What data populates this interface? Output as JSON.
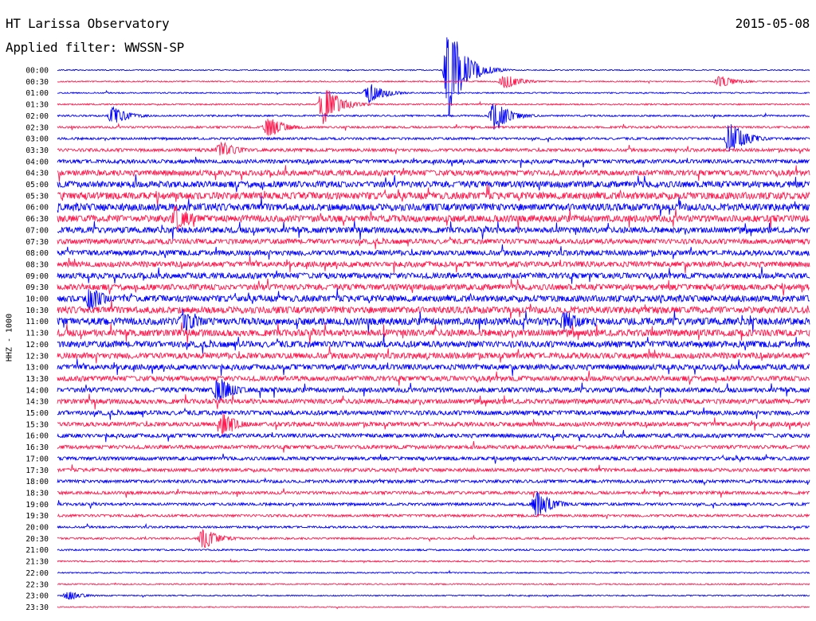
{
  "header": {
    "station": "HT Larissa Observatory",
    "date": "2015-05-08",
    "filter": "Applied filter: WWSSN-SP"
  },
  "colors": {
    "trace_a": "#0000ff",
    "trace_b": "#ff1a4f",
    "background": "#ffffff",
    "text": "#000000"
  },
  "chart_data": {
    "type": "line",
    "subtype": "helicorder",
    "ylabel": "HHZ - 1000",
    "row_interval_minutes": 30,
    "row_labels": [
      "00:00",
      "00:30",
      "01:00",
      "01:30",
      "02:00",
      "02:30",
      "03:00",
      "03:30",
      "04:00",
      "04:30",
      "05:00",
      "05:30",
      "06:00",
      "06:30",
      "07:00",
      "07:30",
      "08:00",
      "08:30",
      "09:00",
      "09:30",
      "10:00",
      "10:30",
      "11:00",
      "11:30",
      "12:00",
      "12:30",
      "13:00",
      "13:30",
      "14:00",
      "14:30",
      "15:00",
      "15:30",
      "16:00",
      "16:30",
      "17:00",
      "17:30",
      "18:00",
      "18:30",
      "19:00",
      "19:30",
      "20:00",
      "20:30",
      "21:00",
      "21:30",
      "22:00",
      "22:30",
      "23:00",
      "23:30"
    ],
    "row_colors": [
      "blue",
      "red"
    ],
    "noise_level_by_row": [
      0.5,
      0.6,
      0.6,
      0.7,
      0.8,
      1.0,
      1.1,
      1.5,
      1.9,
      2.6,
      3.0,
      3.3,
      3.4,
      3.2,
      2.8,
      2.4,
      2.5,
      2.6,
      2.7,
      2.8,
      3.0,
      3.2,
      3.4,
      3.2,
      3.0,
      2.8,
      2.6,
      2.4,
      2.3,
      2.3,
      2.2,
      2.1,
      1.9,
      1.8,
      1.7,
      1.6,
      1.5,
      1.4,
      1.3,
      1.2,
      1.0,
      0.9,
      0.8,
      0.7,
      0.6,
      0.6,
      0.6,
      0.5
    ],
    "events": [
      {
        "row": 0,
        "minute": 15.6,
        "amplitude": 62
      },
      {
        "row": 1,
        "minute": 17.8,
        "amplitude": 10
      },
      {
        "row": 1,
        "minute": 26.4,
        "amplitude": 8
      },
      {
        "row": 2,
        "minute": 12.4,
        "amplitude": 14
      },
      {
        "row": 3,
        "minute": 10.6,
        "amplitude": 26
      },
      {
        "row": 4,
        "minute": 2.2,
        "amplitude": 12
      },
      {
        "row": 4,
        "minute": 17.4,
        "amplitude": 20
      },
      {
        "row": 5,
        "minute": 8.4,
        "amplitude": 14
      },
      {
        "row": 6,
        "minute": 26.8,
        "amplitude": 22
      },
      {
        "row": 7,
        "minute": 6.5,
        "amplitude": 12
      },
      {
        "row": 13,
        "minute": 4.7,
        "amplitude": 18
      },
      {
        "row": 20,
        "minute": 1.3,
        "amplitude": 16
      },
      {
        "row": 22,
        "minute": 5.0,
        "amplitude": 16
      },
      {
        "row": 22,
        "minute": 20.2,
        "amplitude": 16
      },
      {
        "row": 28,
        "minute": 6.4,
        "amplitude": 18
      },
      {
        "row": 31,
        "minute": 6.6,
        "amplitude": 14
      },
      {
        "row": 38,
        "minute": 19.1,
        "amplitude": 18
      },
      {
        "row": 41,
        "minute": 5.8,
        "amplitude": 14
      },
      {
        "row": 46,
        "minute": 0.4,
        "amplitude": 6
      }
    ]
  }
}
